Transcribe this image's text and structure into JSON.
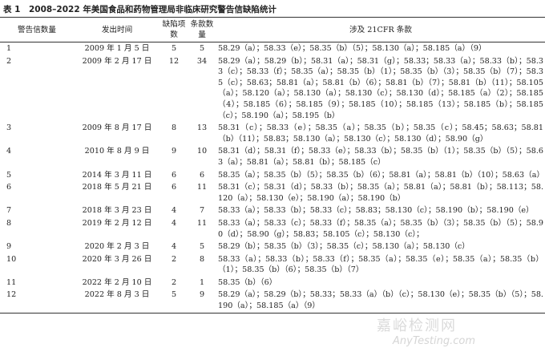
{
  "header": {
    "title": "表 1　2008–2022 年美国食品和药物管理局非临床研究警告信缺陷统计"
  },
  "table": {
    "columns": [
      "警告信数量",
      "发出时间",
      "缺陷项数",
      "条款数量",
      "涉及 21CFR 条款"
    ],
    "rows": [
      [
        "1",
        "2009 年 1 月 5 日",
        "5",
        "5",
        "58.29（a）；58.33（e）；58.35（b）（5）；58.130（a）；58.185（a）（9）"
      ],
      [
        "2",
        "2009 年 2 月 17 日",
        "12",
        "34",
        "58.29（a）；58.29（b）；58.31（a）；58.31（g）；58.33；58.33（a）；58.33（b）；58.33（c）；58.33（f）；58.35（a）；58.35（b）（1）；58.35（b）（3）；58.35（b）（7）；58.35（c）；58.63；58.81（a）；58.81（b）（6）；58.81（b）（7）；58.81（b）（11）；58.105（a）；58.120（a）；58.130（a）；58.130（c）；58.130（d）；58.185（a）（2）；58.185（4）；58.185（6）；58.185（9）；58.185（10）；58.185（13）；58.185（b）；58.185（c）；58.190（a）；58.195（b）"
      ],
      [
        "3",
        "2009 年 8 月 17 日",
        "8",
        "13",
        "58.31（c）；58.33（e）；58.35（a）；58.35（b）；58.35（c）；58.45；58.63；58.81（b）（11）；58.83；58.130（a）；58.130（c）；58.130（d）；58.90（g）"
      ],
      [
        "4",
        "2010 年 8 月 9 日",
        "9",
        "10",
        "58.31（d）；58.31（f）；58.33（e）；58.33（b）；58.35（b）（1）；58.35（b）（5）；58.63（a）；58.81（a）；58.81（b）；58.185（c）"
      ],
      [
        "5",
        "2014 年 3 月 11 日",
        "6",
        "6",
        "58.35（a）；58.35（b）（5）；58.35（b）（6）；58.81（a）；58.81（b）（10）；58.63（a）"
      ],
      [
        "6",
        "2018 年 5 月 21 日",
        "6",
        "11",
        "58.31（c）；58.31（d）；58.33（b）；58.35（a）；58.81（a）；58.81（b）；58.113；58.120（a）；58.130（e）；58.190（a）；58.190（b）"
      ],
      [
        "7",
        "2018 年 3 月 23 日",
        "4",
        "7",
        "58.33（a）；58.33（b）；58.33（c）；58.83；58.130（c）；58.190（b）；58.190（e）"
      ],
      [
        "8",
        "2019 年 2 月 12 日",
        "4",
        "11",
        "58.33（a）；58.33（c）；58.33（f）；58.35（a）；58.35（b）（3）；58.35（b）（5）；58.90（d）；58.90（g）；58.83；58.105（c）；58.130（c）；"
      ],
      [
        "9",
        "2020 年 2 月 3 日",
        "4",
        "5",
        "58.29（b）；58.35（b）（3）；58.35（c）；58.130（a）；58.130（c）"
      ],
      [
        "10",
        "2020 年 3 月 26 日",
        "2",
        "8",
        "58.33（a）；58.33（b）；58.33（f）；58.35（a）；58.35（e）；58.35（a）；58.35（b）（1）；58.35（b）（6）；58.35（b）（7）"
      ],
      [
        "11",
        "2022 年 2 月 10 日",
        "2",
        "1",
        "58.35（b）（6）"
      ],
      [
        "12",
        "2022 年 8 月 3 日",
        "5",
        "9",
        "58.29（a）；58.29（b）；58.33；58.33（a）（b）（c）；58.130（e）；58.35（b）（5）；58.190（a）；58.185（a）（9）"
      ]
    ]
  },
  "watermark": {
    "line1": "嘉峪检测网",
    "line2": "AnyTesting.com"
  }
}
